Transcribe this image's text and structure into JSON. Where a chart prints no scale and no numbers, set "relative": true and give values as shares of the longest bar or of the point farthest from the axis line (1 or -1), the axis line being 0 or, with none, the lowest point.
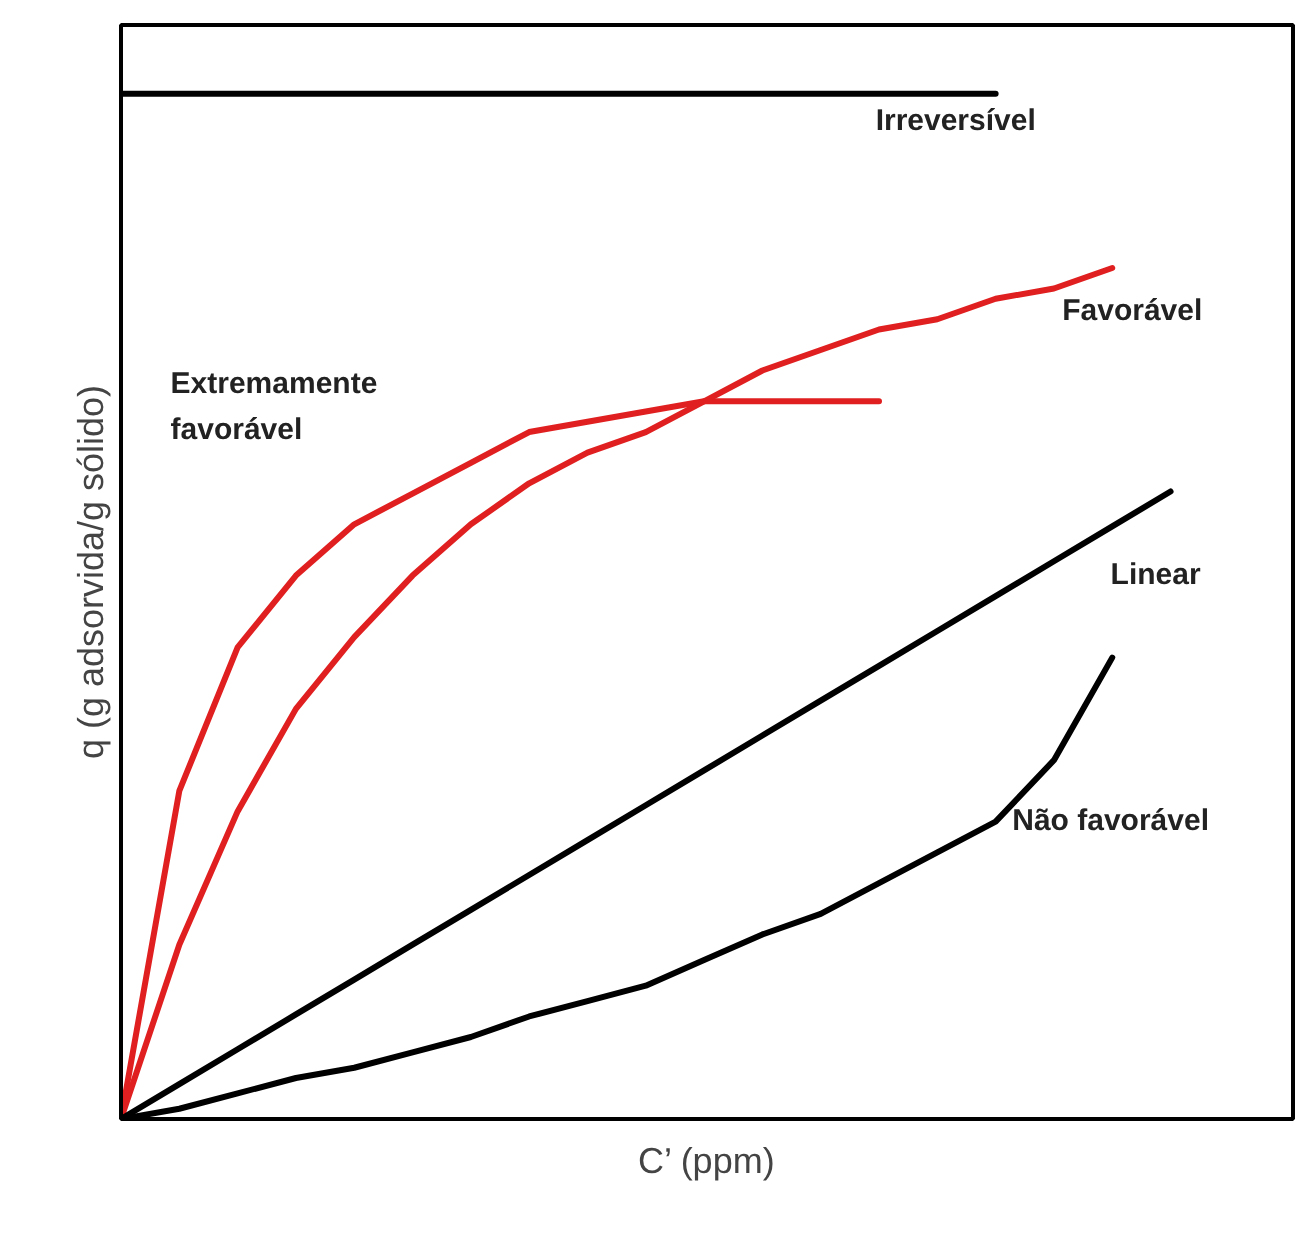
{
  "chart_data": {
    "type": "line",
    "relative": true,
    "xlabel": "C’ (ppm)",
    "ylabel": "q (g adsorvida/g sólido)",
    "grid": false,
    "tick_labels": false,
    "categories": [
      null,
      null,
      null,
      null,
      null,
      null,
      null,
      null,
      null,
      null,
      null,
      null,
      null,
      null,
      null,
      null,
      null,
      null,
      null,
      null,
      null
    ],
    "series": [
      {
        "name": "Irreversível",
        "color": "#000000",
        "values": [
          1,
          1,
          1,
          1,
          1,
          1,
          1,
          1,
          1,
          1,
          1,
          1,
          1,
          1,
          1,
          1,
          null,
          null,
          null,
          null,
          null
        ]
      },
      {
        "name": "Favorável",
        "color": "#e02020",
        "values": [
          0,
          0.17,
          0.3,
          0.4,
          0.47,
          0.53,
          0.58,
          0.62,
          0.65,
          0.67,
          0.7,
          0.73,
          0.75,
          0.77,
          0.78,
          0.8,
          0.81,
          0.83,
          null,
          null,
          null
        ]
      },
      {
        "name": "Extremamente favorável",
        "color": "#e02020",
        "values": [
          0,
          0.32,
          0.46,
          0.53,
          0.58,
          0.61,
          0.64,
          0.67,
          0.68,
          0.69,
          0.7,
          0.7,
          0.7,
          0.7,
          null,
          null,
          null,
          null,
          null,
          null,
          null
        ]
      },
      {
        "name": "Linear",
        "color": "#000000",
        "values": [
          0,
          0.034,
          0.068,
          0.102,
          0.136,
          0.17,
          0.204,
          0.238,
          0.272,
          0.306,
          0.34,
          0.374,
          0.408,
          0.442,
          0.476,
          0.51,
          0.544,
          0.578,
          0.612,
          null,
          null
        ]
      },
      {
        "name": "Não favorável",
        "color": "#000000",
        "values": [
          0,
          0.01,
          0.025,
          0.04,
          0.05,
          0.065,
          0.08,
          0.1,
          0.115,
          0.13,
          0.155,
          0.18,
          0.2,
          0.23,
          0.26,
          0.29,
          0.35,
          0.45,
          null,
          null,
          null
        ]
      }
    ]
  }
}
